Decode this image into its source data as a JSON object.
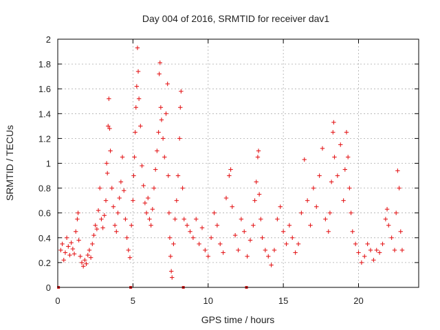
{
  "chart_data": {
    "type": "scatter",
    "title": "Day 004 of 2016, SRMTID for receiver dav1",
    "xlabel": "GPS time / hours",
    "ylabel": "SRMTID / TECUs",
    "xlim": [
      0,
      24
    ],
    "ylim": [
      0,
      2
    ],
    "xticks": [
      0,
      5,
      10,
      15,
      20
    ],
    "xtick_labels": [
      "0",
      "5",
      "10",
      "15",
      "20"
    ],
    "yticks": [
      0,
      0.2,
      0.4,
      0.6,
      0.8,
      1,
      1.2,
      1.4,
      1.6,
      1.8,
      2
    ],
    "ytick_labels": [
      "0",
      "0.2",
      "0.4",
      "0.6",
      "0.8",
      "1",
      "1.2",
      "1.4",
      "1.6",
      "1.8",
      "2"
    ],
    "grid": true,
    "marker": "+",
    "color": "#e41a1c",
    "series": [
      {
        "name": "SRMTID",
        "points": [
          [
            0.2,
            0.3
          ],
          [
            0.3,
            0.35
          ],
          [
            0.4,
            0.22
          ],
          [
            0.5,
            0.28
          ],
          [
            0.6,
            0.4
          ],
          [
            0.7,
            0.33
          ],
          [
            0.8,
            0.26
          ],
          [
            0.9,
            0.36
          ],
          [
            1.0,
            0.31
          ],
          [
            1.1,
            0.27
          ],
          [
            1.2,
            0.45
          ],
          [
            1.3,
            0.55
          ],
          [
            1.35,
            0.6
          ],
          [
            1.4,
            0.38
          ],
          [
            1.5,
            0.25
          ],
          [
            1.6,
            0.2
          ],
          [
            1.7,
            0.17
          ],
          [
            1.8,
            0.22
          ],
          [
            1.9,
            0.19
          ],
          [
            2.0,
            0.26
          ],
          [
            2.1,
            0.3
          ],
          [
            2.2,
            0.24
          ],
          [
            2.3,
            0.35
          ],
          [
            2.4,
            0.42
          ],
          [
            2.5,
            0.5
          ],
          [
            2.6,
            0.47
          ],
          [
            2.7,
            0.62
          ],
          [
            2.8,
            0.8
          ],
          [
            2.9,
            0.55
          ],
          [
            3.0,
            0.48
          ],
          [
            3.1,
            0.58
          ],
          [
            3.2,
            0.7
          ],
          [
            3.25,
            1.0
          ],
          [
            3.3,
            0.92
          ],
          [
            3.35,
            1.3
          ],
          [
            3.4,
            1.52
          ],
          [
            3.45,
            1.28
          ],
          [
            3.5,
            1.1
          ],
          [
            3.6,
            0.8
          ],
          [
            3.7,
            0.65
          ],
          [
            3.8,
            0.5
          ],
          [
            3.9,
            0.45
          ],
          [
            4.0,
            0.6
          ],
          [
            4.1,
            0.72
          ],
          [
            4.2,
            0.85
          ],
          [
            4.3,
            1.05
          ],
          [
            4.4,
            0.78
          ],
          [
            4.5,
            0.55
          ],
          [
            4.6,
            0.4
          ],
          [
            4.7,
            0.3
          ],
          [
            4.8,
            0.24
          ],
          [
            4.9,
            0.5
          ],
          [
            5.0,
            0.7
          ],
          [
            5.05,
            0.9
          ],
          [
            5.1,
            1.05
          ],
          [
            5.15,
            1.25
          ],
          [
            5.2,
            1.45
          ],
          [
            5.25,
            1.62
          ],
          [
            5.3,
            1.93
          ],
          [
            5.35,
            1.74
          ],
          [
            5.4,
            1.52
          ],
          [
            5.5,
            1.3
          ],
          [
            5.6,
            0.98
          ],
          [
            5.7,
            0.82
          ],
          [
            5.8,
            0.68
          ],
          [
            5.9,
            0.6
          ],
          [
            6.0,
            0.72
          ],
          [
            6.1,
            0.55
          ],
          [
            6.2,
            0.5
          ],
          [
            6.3,
            0.63
          ],
          [
            6.4,
            0.8
          ],
          [
            6.5,
            0.95
          ],
          [
            6.6,
            1.1
          ],
          [
            6.7,
            1.25
          ],
          [
            6.75,
            1.72
          ],
          [
            6.8,
            1.81
          ],
          [
            6.85,
            1.45
          ],
          [
            6.9,
            1.35
          ],
          [
            7.0,
            1.2
          ],
          [
            7.1,
            1.05
          ],
          [
            7.2,
            1.4
          ],
          [
            7.3,
            1.64
          ],
          [
            7.35,
            0.9
          ],
          [
            7.4,
            0.6
          ],
          [
            7.45,
            0.4
          ],
          [
            7.5,
            0.25
          ],
          [
            7.55,
            0.13
          ],
          [
            7.6,
            0.08
          ],
          [
            7.7,
            0.35
          ],
          [
            7.8,
            0.55
          ],
          [
            7.9,
            0.7
          ],
          [
            8.0,
            0.9
          ],
          [
            8.1,
            1.2
          ],
          [
            8.15,
            1.45
          ],
          [
            8.2,
            1.58
          ],
          [
            8.3,
            0.8
          ],
          [
            8.4,
            0.55
          ],
          [
            8.6,
            0.5
          ],
          [
            8.8,
            0.45
          ],
          [
            9.0,
            0.4
          ],
          [
            9.2,
            0.55
          ],
          [
            9.4,
            0.35
          ],
          [
            9.6,
            0.48
          ],
          [
            9.8,
            0.3
          ],
          [
            10.0,
            0.25
          ],
          [
            10.2,
            0.4
          ],
          [
            10.4,
            0.6
          ],
          [
            10.6,
            0.5
          ],
          [
            10.8,
            0.35
          ],
          [
            11.0,
            0.28
          ],
          [
            11.2,
            0.72
          ],
          [
            11.4,
            0.9
          ],
          [
            11.5,
            0.95
          ],
          [
            11.6,
            0.65
          ],
          [
            11.8,
            0.42
          ],
          [
            12.0,
            0.3
          ],
          [
            12.2,
            0.55
          ],
          [
            12.4,
            0.45
          ],
          [
            12.6,
            0.25
          ],
          [
            12.8,
            0.38
          ],
          [
            13.0,
            0.5
          ],
          [
            13.1,
            0.7
          ],
          [
            13.2,
            0.85
          ],
          [
            13.3,
            1.05
          ],
          [
            13.35,
            1.1
          ],
          [
            13.4,
            0.75
          ],
          [
            13.5,
            0.55
          ],
          [
            13.6,
            0.4
          ],
          [
            13.8,
            0.3
          ],
          [
            14.0,
            0.25
          ],
          [
            14.2,
            0.18
          ],
          [
            14.4,
            0.3
          ],
          [
            14.6,
            0.55
          ],
          [
            14.8,
            0.65
          ],
          [
            15.0,
            0.45
          ],
          [
            15.2,
            0.35
          ],
          [
            15.4,
            0.5
          ],
          [
            15.6,
            0.4
          ],
          [
            15.8,
            0.28
          ],
          [
            16.0,
            0.35
          ],
          [
            16.2,
            0.6
          ],
          [
            16.4,
            1.03
          ],
          [
            16.6,
            0.7
          ],
          [
            16.8,
            0.5
          ],
          [
            17.0,
            0.8
          ],
          [
            17.2,
            0.65
          ],
          [
            17.4,
            0.9
          ],
          [
            17.6,
            1.12
          ],
          [
            17.8,
            0.55
          ],
          [
            18.0,
            0.45
          ],
          [
            18.1,
            0.6
          ],
          [
            18.2,
            0.85
          ],
          [
            18.3,
            1.25
          ],
          [
            18.35,
            1.33
          ],
          [
            18.4,
            1.05
          ],
          [
            18.6,
            0.9
          ],
          [
            18.8,
            1.15
          ],
          [
            19.0,
            0.7
          ],
          [
            19.1,
            0.95
          ],
          [
            19.2,
            1.25
          ],
          [
            19.3,
            1.05
          ],
          [
            19.4,
            0.8
          ],
          [
            19.5,
            0.6
          ],
          [
            19.6,
            0.45
          ],
          [
            19.8,
            0.35
          ],
          [
            20.0,
            0.28
          ],
          [
            20.2,
            0.2
          ],
          [
            20.4,
            0.25
          ],
          [
            20.6,
            0.35
          ],
          [
            20.8,
            0.3
          ],
          [
            21.0,
            0.22
          ],
          [
            21.2,
            0.3
          ],
          [
            21.4,
            0.28
          ],
          [
            21.6,
            0.35
          ],
          [
            21.8,
            0.55
          ],
          [
            21.9,
            0.63
          ],
          [
            22.0,
            0.5
          ],
          [
            22.2,
            0.4
          ],
          [
            22.4,
            0.3
          ],
          [
            22.5,
            0.6
          ],
          [
            22.6,
            0.94
          ],
          [
            22.7,
            0.8
          ],
          [
            22.8,
            0.45
          ],
          [
            22.9,
            0.3
          ]
        ]
      }
    ],
    "zero_markers": [
      0.05,
      4.85,
      8.35,
      12.55
    ]
  }
}
